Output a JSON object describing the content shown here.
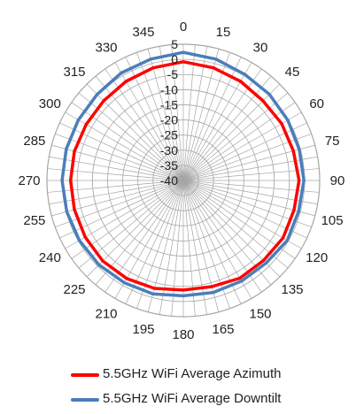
{
  "chart_data": {
    "type": "polar-line",
    "angle_labels": [
      "0",
      "15",
      "30",
      "45",
      "60",
      "75",
      "90",
      "105",
      "120",
      "135",
      "150",
      "165",
      "180",
      "195",
      "210",
      "225",
      "240",
      "255",
      "270",
      "285",
      "300",
      "315",
      "330",
      "345"
    ],
    "radial_ticks": [
      5,
      0,
      -5,
      -10,
      -15,
      -20,
      -25,
      -30,
      -35,
      -40
    ],
    "radial_tick_labels": [
      "5",
      "0",
      "-5",
      "-10",
      "-15",
      "-20",
      "-25",
      "-30",
      "-35",
      "-40"
    ],
    "rlim": [
      -40,
      5
    ],
    "grid": true,
    "legend_position": "bottom",
    "series": [
      {
        "name": "5.5GHz WiFi Average Azimuth",
        "color": "#ff0000",
        "angles": [
          0,
          15,
          30,
          45,
          60,
          75,
          90,
          105,
          120,
          135,
          150,
          165,
          180,
          195,
          210,
          225,
          240,
          255,
          270,
          285,
          300,
          315,
          330,
          345
        ],
        "values": [
          -0.8,
          -1.5,
          -2.2,
          -2.8,
          -2.5,
          -2.4,
          -1.8,
          -2.2,
          -2.0,
          -2.6,
          -2.7,
          -3.7,
          -3.8,
          -3.1,
          -2.6,
          -2.4,
          -2.6,
          -2.8,
          -2.8,
          -2.8,
          -3.0,
          -2.8,
          -2.2,
          -1.5
        ]
      },
      {
        "name": "5.5GHz WiFi Average Downtilt",
        "color": "#4a7ebb",
        "angles": [
          0,
          15,
          30,
          45,
          60,
          75,
          90,
          105,
          120,
          135,
          150,
          165,
          180,
          195,
          210,
          225,
          240,
          255,
          270,
          285,
          300,
          315,
          330,
          345
        ],
        "values": [
          2.3,
          1.5,
          0.5,
          0.2,
          -0.2,
          -0.4,
          -0.2,
          -0.6,
          -0.4,
          -1.4,
          -1.6,
          -1.7,
          -1.9,
          -1.2,
          -1.0,
          -0.6,
          -0.4,
          -0.2,
          0.0,
          0.0,
          0.0,
          0.2,
          1.0,
          1.5
        ]
      }
    ]
  }
}
